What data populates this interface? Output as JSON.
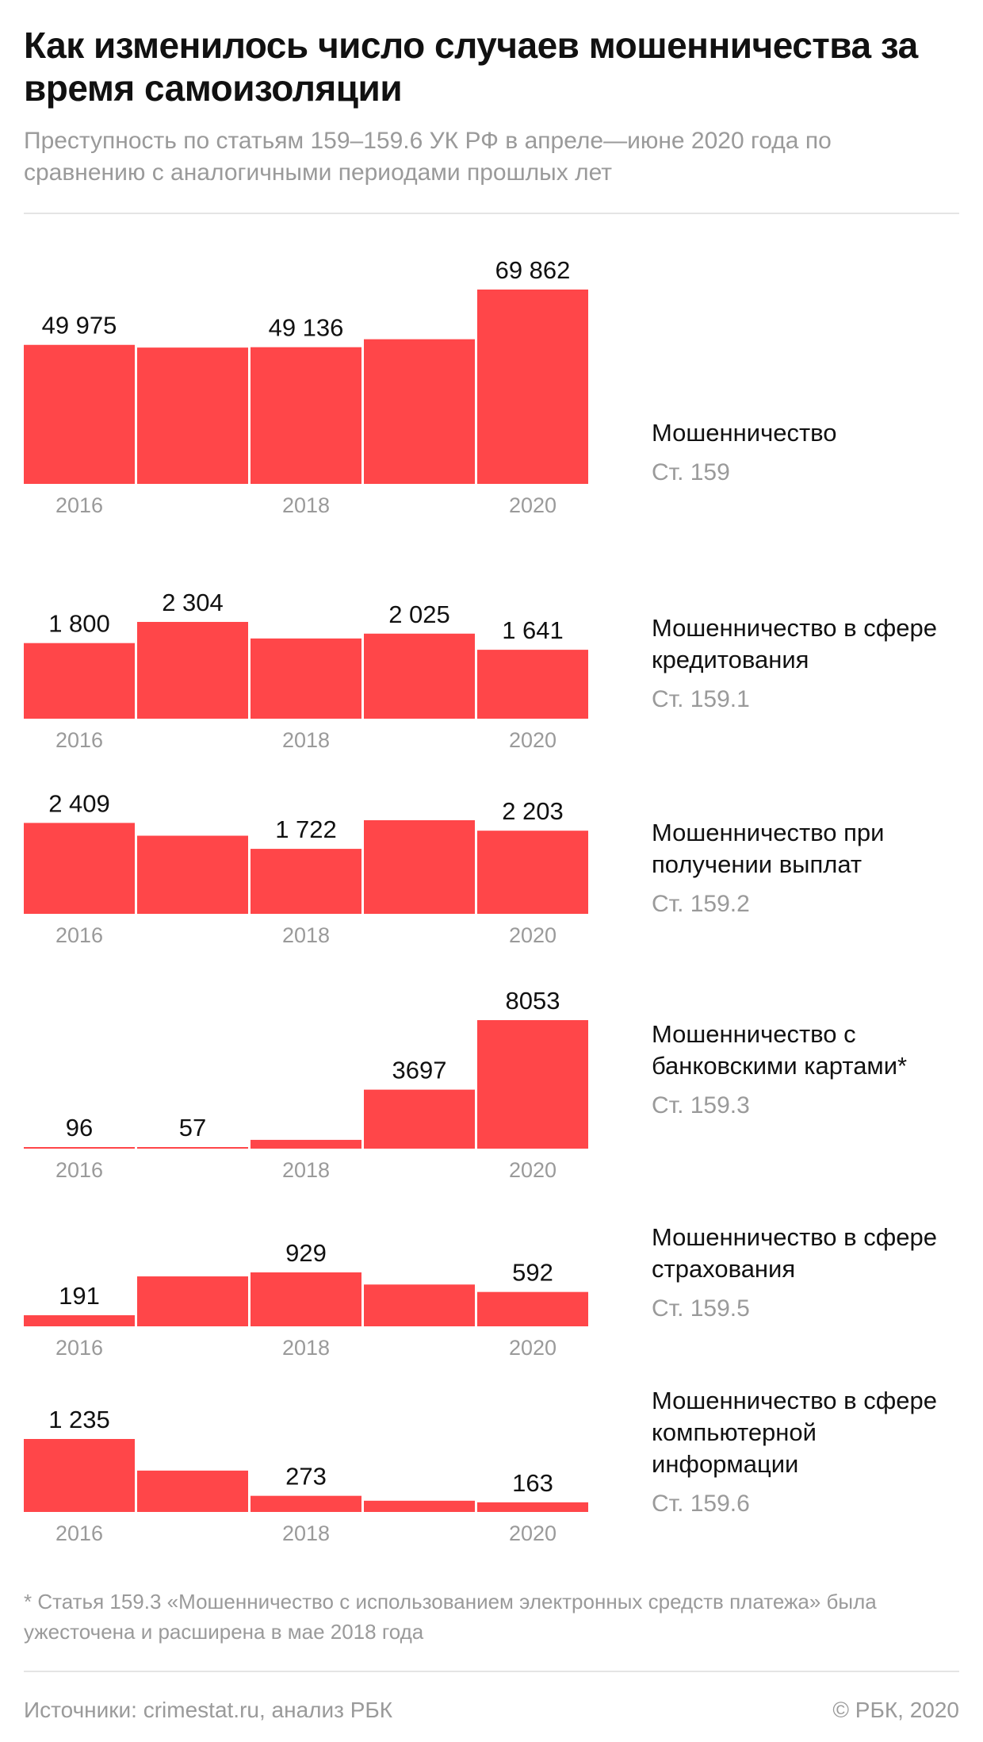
{
  "header": {
    "title": "Как изменилось число случаев мошенничества за время самоизоляции",
    "subtitle": "Преступность по статьям 159–159.6 УК РФ в апреле—июне 2020 года по сравнению с аналогичными периодами прошлых лет"
  },
  "colors": {
    "bar": "#ff4649",
    "muted": "#9a9a9a",
    "text": "#111111"
  },
  "chart_data": [
    {
      "type": "bar",
      "name": "Мошенничество",
      "article": "Ст. 159",
      "categories": [
        "2016",
        "2017",
        "2018",
        "2019",
        "2020"
      ],
      "values": [
        49975,
        49000,
        49136,
        52000,
        69862
      ],
      "data_labels": [
        "49 975",
        "",
        "49 136",
        "",
        "69 862"
      ],
      "tick_labels": [
        "2016",
        "",
        "2018",
        "",
        "2020"
      ]
    },
    {
      "type": "bar",
      "name": "Мошенничество в сфере кредитования",
      "article": "Ст. 159.1",
      "categories": [
        "2016",
        "2017",
        "2018",
        "2019",
        "2020"
      ],
      "values": [
        1800,
        2304,
        1910,
        2025,
        1641
      ],
      "data_labels": [
        "1 800",
        "2 304",
        "",
        "2 025",
        "1 641"
      ],
      "tick_labels": [
        "2016",
        "",
        "2018",
        "",
        "2020"
      ]
    },
    {
      "type": "bar",
      "name": "Мошенничество при получении выплат",
      "article": "Ст. 159.2",
      "categories": [
        "2016",
        "2017",
        "2018",
        "2019",
        "2020"
      ],
      "values": [
        2409,
        2070,
        1722,
        2480,
        2203
      ],
      "data_labels": [
        "2 409",
        "",
        "1 722",
        "",
        "2 203"
      ],
      "tick_labels": [
        "2016",
        "",
        "2018",
        "",
        "2020"
      ]
    },
    {
      "type": "bar",
      "name": "Мошенничество с банковскими картами*",
      "article": "Ст. 159.3",
      "categories": [
        "2016",
        "2017",
        "2018",
        "2019",
        "2020"
      ],
      "values": [
        96,
        57,
        550,
        3697,
        8053
      ],
      "data_labels": [
        "96",
        "57",
        "",
        "3697",
        "8053"
      ],
      "tick_labels": [
        "2016",
        "",
        "2018",
        "",
        "2020"
      ]
    },
    {
      "type": "bar",
      "name": "Мошенничество в сфере страхования",
      "article": "Ст. 159.5",
      "categories": [
        "2016",
        "2017",
        "2018",
        "2019",
        "2020"
      ],
      "values": [
        191,
        860,
        929,
        720,
        592
      ],
      "data_labels": [
        "191",
        "",
        "929",
        "",
        "592"
      ],
      "tick_labels": [
        "2016",
        "",
        "2018",
        "",
        "2020"
      ]
    },
    {
      "type": "bar",
      "name": "Мошенничество в сфере компьютерной информации",
      "article": "Ст. 159.6",
      "categories": [
        "2016",
        "2017",
        "2018",
        "2019",
        "2020"
      ],
      "values": [
        1235,
        700,
        273,
        190,
        163
      ],
      "data_labels": [
        "1 235",
        "",
        "273",
        "",
        "163"
      ],
      "tick_labels": [
        "2016",
        "",
        "2018",
        "",
        "2020"
      ]
    }
  ],
  "footnote": "* Статья 159.3 «Мошенничество с использованием электронных средств платежа» была ужесточена и расширена в мае 2018 года",
  "footer": {
    "source": "Источники: crimestat.ru, анализ РБК",
    "copyright": "© РБК, 2020"
  }
}
